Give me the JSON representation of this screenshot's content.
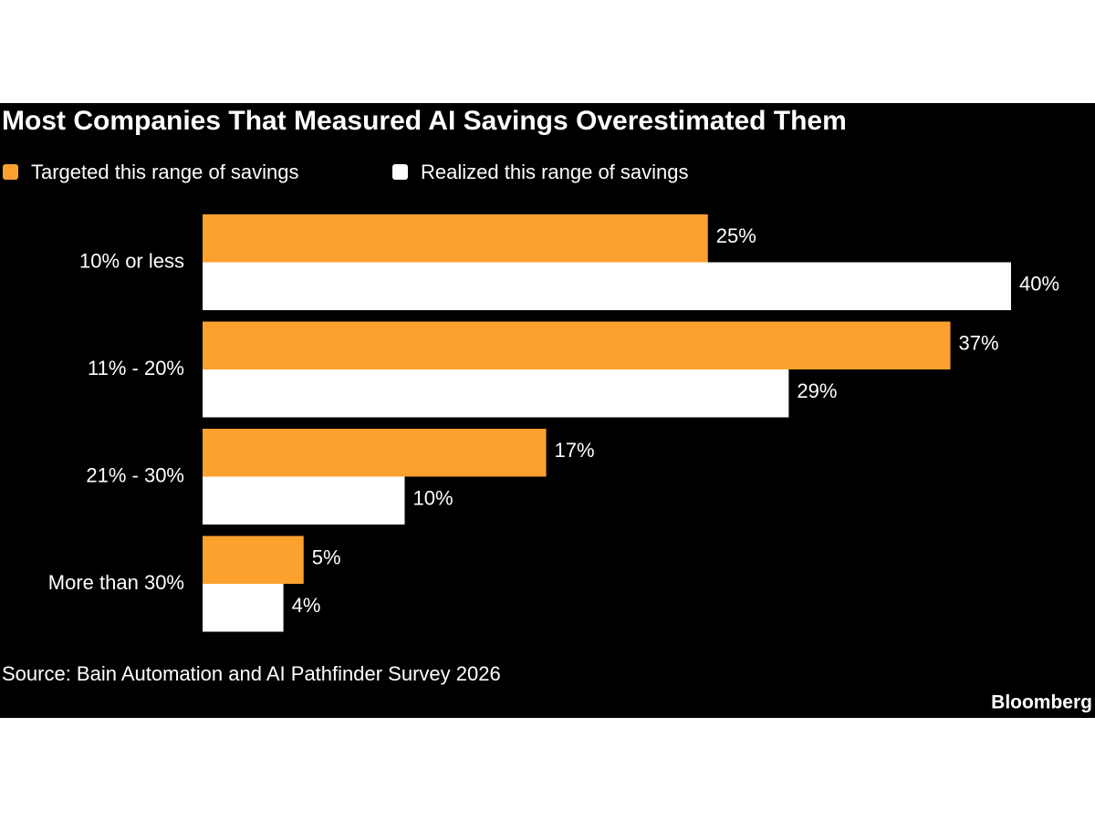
{
  "chart_data": {
    "type": "hbar",
    "title": "Most Companies That Measured AI Savings Overestimated Them",
    "categories": [
      "10% or less",
      "11% - 20%",
      "21% - 30%",
      "More than 30%"
    ],
    "series": [
      {
        "name": "Targeted this range of savings",
        "color": "#fca12f",
        "values": [
          25,
          37,
          17,
          5
        ],
        "value_labels": [
          "25%",
          "37%",
          "17%",
          "5%"
        ]
      },
      {
        "name": "Realized this range of savings",
        "color": "#ffffff",
        "values": [
          40,
          29,
          10,
          4
        ],
        "value_labels": [
          "40%",
          "29%",
          "10%",
          "4%"
        ]
      }
    ],
    "source": "Source: Bain Automation and AI Pathfinder Survey 2026",
    "brand": "Bloomberg"
  }
}
